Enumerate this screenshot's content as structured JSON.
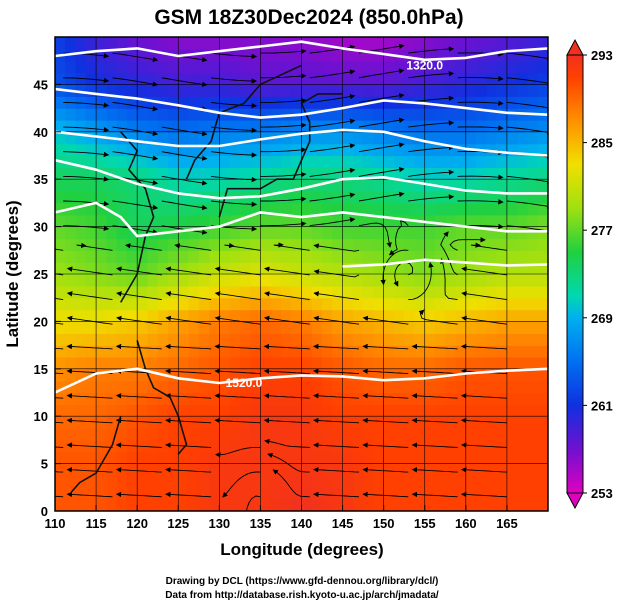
{
  "title": "GSM 18Z30Dec2024 (850.0hPa)",
  "credits": {
    "line1": "Drawing by DCL (https://www.gfd-dennou.org/library/dcl/)",
    "line2": "Data from http://database.rish.kyoto-u.ac.jp/arch/jmadata/"
  },
  "chart_data": {
    "type": "heatmap",
    "title": "GSM 18Z30Dec2024 (850.0hPa)",
    "xlabel": "Longitude (degrees)",
    "ylabel": "Latitude  (degrees)",
    "xlim": [
      110,
      170
    ],
    "ylim": [
      0,
      50
    ],
    "x_ticks": [
      "110",
      "115",
      "120",
      "125",
      "130",
      "135",
      "140",
      "145",
      "150",
      "155",
      "160",
      "165"
    ],
    "y_ticks": [
      "0",
      "5",
      "10",
      "15",
      "20",
      "25",
      "30",
      "35",
      "40",
      "45"
    ],
    "x_tick_values": [
      110,
      115,
      120,
      125,
      130,
      135,
      140,
      145,
      150,
      155,
      160,
      165
    ],
    "y_tick_values": [
      0,
      5,
      10,
      15,
      20,
      25,
      30,
      35,
      40,
      45
    ],
    "grid": true,
    "colorbar": {
      "min": 253,
      "max": 293,
      "ticks": [
        "253",
        "261",
        "269",
        "277",
        "285",
        "293"
      ],
      "tick_values": [
        253,
        261,
        269,
        277,
        285,
        293
      ],
      "colors": [
        "#e000c0",
        "#7010d0",
        "#1030e0",
        "#00a0f0",
        "#00d8b0",
        "#20d040",
        "#a0e010",
        "#f0e000",
        "#ff9000",
        "#ff4000",
        "#f03020"
      ]
    },
    "contour_labels": [
      {
        "text": "1320.0",
        "lon": 155,
        "lat": 47
      },
      {
        "text": "1520.0",
        "lon": 133,
        "lat": 13.5
      }
    ],
    "contours": [
      {
        "points": [
          [
            110,
            48.0
          ],
          [
            115,
            48.5
          ],
          [
            120,
            48.8
          ],
          [
            125,
            48.0
          ],
          [
            130,
            48.5
          ],
          [
            135,
            49.0
          ],
          [
            140,
            49.5
          ],
          [
            145,
            48.8
          ],
          [
            150,
            48.2
          ],
          [
            155,
            47.6
          ],
          [
            160,
            47.8
          ],
          [
            165,
            48.5
          ],
          [
            170,
            48.8
          ]
        ]
      },
      {
        "points": [
          [
            110,
            44.5
          ],
          [
            115,
            44.0
          ],
          [
            120,
            43.5
          ],
          [
            125,
            42.8
          ],
          [
            130,
            42.0
          ],
          [
            135,
            41.5
          ],
          [
            140,
            41.8
          ],
          [
            145,
            42.5
          ],
          [
            150,
            43.3
          ],
          [
            155,
            43.0
          ],
          [
            160,
            42.5
          ],
          [
            165,
            42.0
          ],
          [
            170,
            41.8
          ]
        ]
      },
      {
        "points": [
          [
            110,
            40.0
          ],
          [
            115,
            39.5
          ],
          [
            120,
            39.0
          ],
          [
            125,
            38.5
          ],
          [
            130,
            38.5
          ],
          [
            135,
            39.2
          ],
          [
            140,
            39.8
          ],
          [
            145,
            40.2
          ],
          [
            150,
            40.0
          ],
          [
            155,
            39.0
          ],
          [
            160,
            38.2
          ],
          [
            165,
            37.8
          ],
          [
            170,
            37.5
          ]
        ]
      },
      {
        "points": [
          [
            110,
            37.0
          ],
          [
            115,
            36.0
          ],
          [
            120,
            34.5
          ],
          [
            125,
            33.5
          ],
          [
            130,
            33.0
          ],
          [
            135,
            33.2
          ],
          [
            140,
            34.0
          ],
          [
            145,
            35.0
          ],
          [
            150,
            35.2
          ],
          [
            155,
            34.5
          ],
          [
            160,
            33.8
          ],
          [
            165,
            33.5
          ],
          [
            170,
            33.5
          ]
        ]
      },
      {
        "points": [
          [
            110,
            31.5
          ],
          [
            115,
            32.5
          ],
          [
            118,
            31.0
          ],
          [
            120,
            29.0
          ],
          [
            125,
            29.5
          ],
          [
            130,
            30.0
          ],
          [
            135,
            31.5
          ],
          [
            140,
            31.0
          ],
          [
            145,
            31.5
          ],
          [
            150,
            31.0
          ],
          [
            155,
            30.5
          ],
          [
            160,
            30.0
          ],
          [
            165,
            29.5
          ],
          [
            170,
            29.5
          ]
        ]
      },
      {
        "points": [
          [
            145,
            25.8
          ],
          [
            150,
            26.0
          ],
          [
            155,
            26.5
          ],
          [
            160,
            26.2
          ],
          [
            165,
            25.9
          ],
          [
            170,
            26.0
          ]
        ]
      },
      {
        "points": [
          [
            110,
            12.5
          ],
          [
            115,
            14.5
          ],
          [
            120,
            15.0
          ],
          [
            125,
            14.0
          ],
          [
            130,
            13.5
          ],
          [
            135,
            14.0
          ],
          [
            140,
            14.3
          ],
          [
            145,
            14.2
          ],
          [
            150,
            13.8
          ],
          [
            155,
            14.0
          ],
          [
            160,
            14.5
          ],
          [
            165,
            14.8
          ],
          [
            170,
            15.0
          ]
        ]
      }
    ],
    "temperature_field": [
      {
        "lat": 50,
        "values": [
          262,
          259,
          257,
          256,
          256,
          256,
          256,
          255,
          255,
          256,
          257,
          258,
          259
        ]
      },
      {
        "lat": 45,
        "values": [
          263,
          261,
          260,
          259,
          259,
          258,
          258,
          258,
          258,
          259,
          260,
          261,
          262
        ]
      },
      {
        "lat": 40,
        "values": [
          270,
          268,
          266,
          265,
          266,
          266,
          267,
          267,
          266,
          265,
          265,
          266,
          267
        ]
      },
      {
        "lat": 35,
        "values": [
          274,
          274,
          273,
          271,
          271,
          272,
          273,
          273,
          272,
          271,
          271,
          272,
          273
        ]
      },
      {
        "lat": 30,
        "values": [
          277,
          276,
          274,
          275,
          276,
          277,
          277,
          276,
          276,
          276,
          277,
          277,
          278
        ]
      },
      {
        "lat": 25,
        "values": [
          279,
          278,
          277,
          279,
          281,
          282,
          281,
          280,
          279,
          278,
          279,
          280,
          280
        ]
      },
      {
        "lat": 20,
        "values": [
          283,
          283,
          284,
          286,
          288,
          289,
          288,
          286,
          285,
          284,
          285,
          286,
          286
        ]
      },
      {
        "lat": 15,
        "values": [
          287,
          288,
          288,
          289,
          290,
          291,
          291,
          290,
          289,
          289,
          290,
          290,
          290
        ]
      },
      {
        "lat": 10,
        "values": [
          289,
          289,
          290,
          291,
          291,
          292,
          292,
          291,
          291,
          291,
          291,
          291,
          291
        ]
      },
      {
        "lat": 5,
        "values": [
          290,
          290,
          291,
          291,
          292,
          292,
          292,
          292,
          291,
          291,
          291,
          291,
          291
        ]
      },
      {
        "lat": 0,
        "values": [
          290,
          290,
          291,
          291,
          292,
          292,
          293,
          292,
          291,
          291,
          291,
          291,
          291
        ]
      }
    ],
    "field_lons": [
      110,
      115,
      120,
      125,
      130,
      135,
      140,
      145,
      150,
      155,
      160,
      165,
      170
    ]
  }
}
